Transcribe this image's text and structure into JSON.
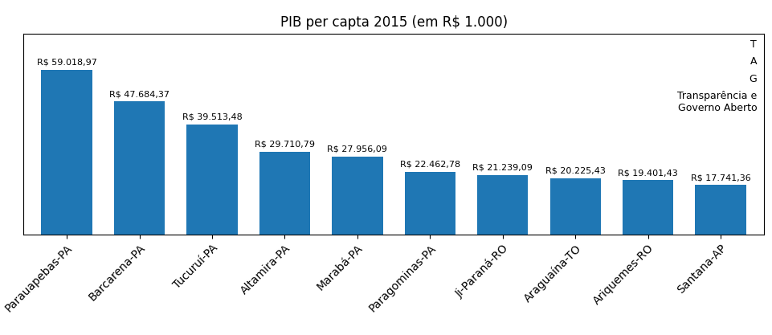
{
  "chart_data": {
    "type": "bar",
    "title": "PIB per capta 2015 (em R$ 1.000)",
    "categories": [
      "Parauapebas-PA",
      "Barcarena-PA",
      "Tucuruí-PA",
      "Altamira-PA",
      "Marabá-PA",
      "Paragominas-PA",
      "Ji-Paraná-RO",
      "Araguaína-TO",
      "Ariquemes-RO",
      "Santana-AP"
    ],
    "values": [
      59018.97,
      47684.37,
      39513.48,
      29710.79,
      27956.09,
      22462.78,
      21239.09,
      20225.43,
      19401.43,
      17741.36
    ],
    "value_labels": [
      "R$ 59.018,97",
      "R$ 47.684,37",
      "R$ 39.513,48",
      "R$ 29.710,79",
      "R$ 27.956,09",
      "R$ 22.462,78",
      "R$ 21.239,09",
      "R$ 20.225,43",
      "R$ 19.401,43",
      "R$ 17.741,36"
    ],
    "data_labels": true,
    "ylim": [
      0,
      72000
    ],
    "tick_labels": "x",
    "annotations": [
      "T",
      "A",
      "G",
      "Transparência e\nGoverno Aberto"
    ]
  }
}
